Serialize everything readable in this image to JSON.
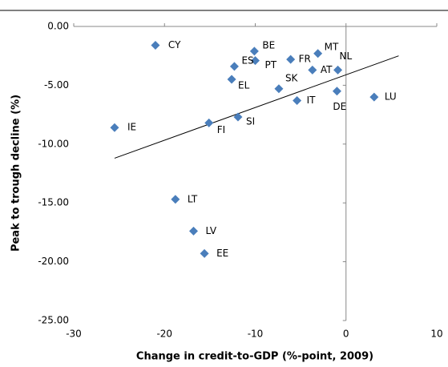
{
  "chart_data": {
    "type": "scatter",
    "x_label": "Change in credit-to-GDP (%-point, 2009)",
    "y_label": "Peak to trough decline (%)",
    "xlim": [
      -30,
      10
    ],
    "xticks": [
      -30,
      -20,
      -10,
      0,
      10
    ],
    "ylim": [
      -25,
      0
    ],
    "yticks": [
      {
        "value": -25,
        "label": "-25.00"
      },
      {
        "value": -20,
        "label": "-20.00"
      },
      {
        "value": -15,
        "label": "-15.00"
      },
      {
        "value": -10,
        "label": "-10.00"
      },
      {
        "value": -5,
        "label": "-5.00"
      },
      {
        "value": 0,
        "label": "0.00"
      }
    ],
    "grid": false,
    "series": [
      {
        "color": "#4a7ebb",
        "labels": [
          "CY",
          "BE",
          "MT",
          "FR",
          "PT",
          "ES",
          "NL",
          "AT",
          "EL",
          "SK",
          "DE",
          "LU",
          "IT",
          "SI",
          "FI",
          "IE",
          "LT",
          "LV",
          "EE"
        ],
        "x": [
          -21.0,
          -10.1,
          -3.1,
          -6.1,
          -10.0,
          -12.3,
          -0.9,
          -3.7,
          -12.6,
          -7.4,
          -1.0,
          3.1,
          -5.4,
          -11.9,
          -15.1,
          -25.5,
          -18.8,
          -16.8,
          -15.6
        ],
        "values": [
          -1.6,
          -2.1,
          -2.3,
          -2.8,
          -2.9,
          -3.4,
          -3.7,
          -3.7,
          -4.5,
          -5.3,
          -5.5,
          -6.0,
          -6.3,
          -7.7,
          -8.2,
          -8.6,
          -14.7,
          -17.4,
          -19.3
        ]
      }
    ],
    "trendline": {
      "x": [
        -25.5,
        5.8
      ],
      "values": [
        -11.2,
        -2.5
      ]
    }
  }
}
